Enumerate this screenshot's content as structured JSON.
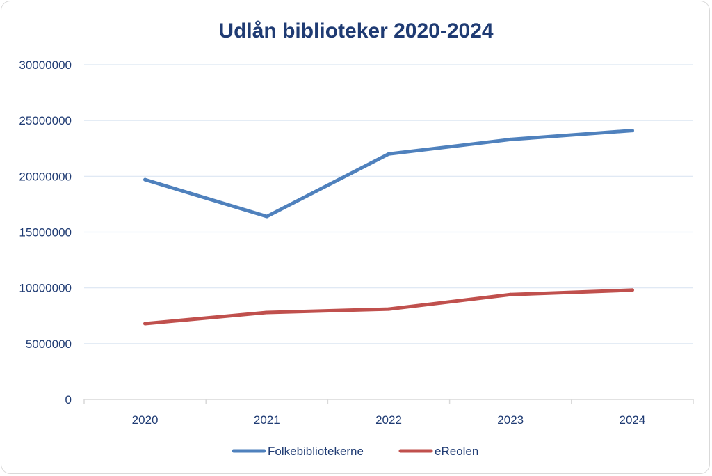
{
  "chart_data": {
    "type": "line",
    "title": "Udlån biblioteker 2020-2024",
    "xlabel": "",
    "ylabel": "",
    "categories": [
      "2020",
      "2021",
      "2022",
      "2023",
      "2024"
    ],
    "ylim": [
      0,
      30000000
    ],
    "yticks": [
      0,
      5000000,
      10000000,
      15000000,
      20000000,
      25000000,
      30000000
    ],
    "ytick_labels": [
      "0",
      "5000000",
      "10000000",
      "15000000",
      "20000000",
      "25000000",
      "30000000"
    ],
    "grid": true,
    "legend_position": "bottom",
    "series": [
      {
        "name": "Folkebibliotekerne",
        "color": "#4f81bd",
        "values": [
          19700000,
          16400000,
          22000000,
          23300000,
          24100000
        ]
      },
      {
        "name": "eReolen",
        "color": "#c0504d",
        "values": [
          6800000,
          7800000,
          8100000,
          9400000,
          9800000
        ]
      }
    ]
  }
}
